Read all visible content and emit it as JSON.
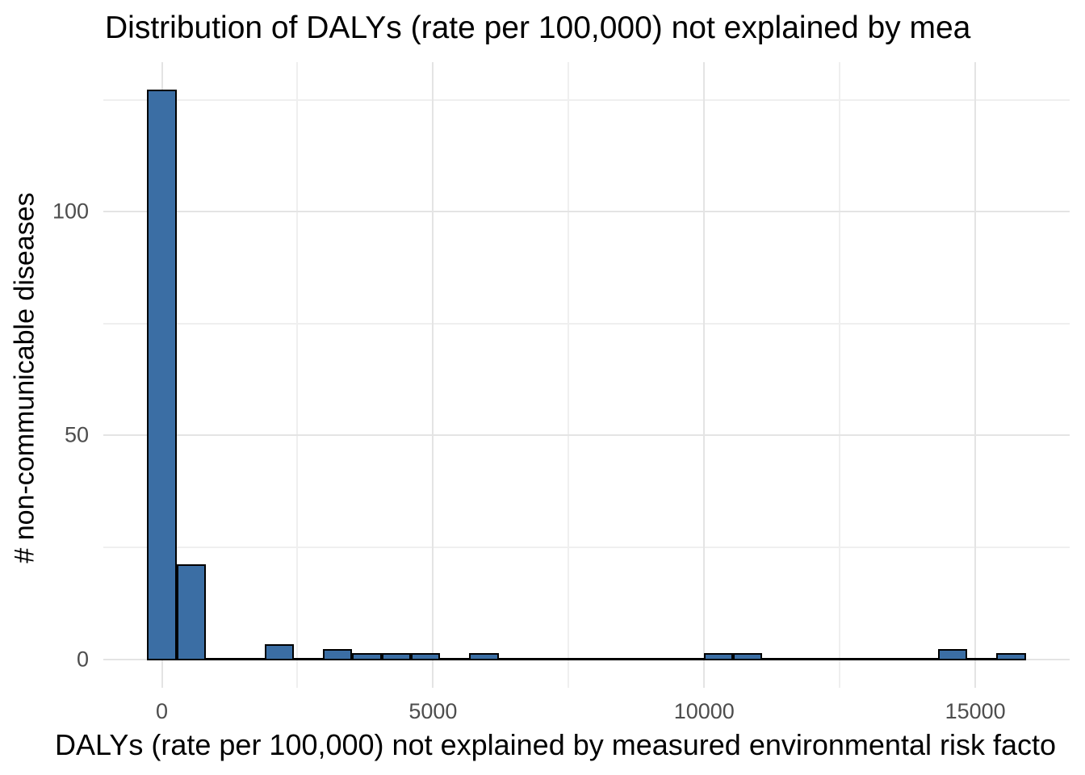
{
  "chart_data": {
    "type": "histogram",
    "title": "Distribution of DALYs (rate per 100,000) not explained by mea",
    "xlabel": "DALYs (rate per 100,000) not explained by measured environmental risk facto",
    "ylabel": "# non-communicable diseases",
    "bin_width": 540,
    "bin_centers": [
      0,
      540,
      1080,
      1620,
      2160,
      2700,
      3240,
      3780,
      4320,
      4860,
      5400,
      5940,
      6480,
      7020,
      7560,
      8100,
      8640,
      9180,
      9720,
      10260,
      10800,
      11340,
      11880,
      12420,
      12960,
      13500,
      14040,
      14580,
      15120,
      15660
    ],
    "counts": [
      127,
      21,
      0,
      0,
      3,
      0,
      2,
      1,
      1,
      1,
      0,
      1,
      0,
      0,
      0,
      0,
      0,
      0,
      0,
      1,
      1,
      0,
      0,
      0,
      0,
      0,
      0,
      2,
      0,
      1
    ],
    "x_major_ticks": [
      0,
      5000,
      10000,
      15000
    ],
    "x_minor_ticks": [
      2500,
      7500,
      12500
    ],
    "y_major_ticks": [
      0,
      50,
      100
    ],
    "y_minor_ticks": [
      25,
      75,
      125
    ],
    "xlim": [
      -1080,
      16740
    ],
    "ylim": [
      -6.4,
      133.4
    ],
    "grid": "major and minor gridlines, no axis lines, no tick marks",
    "legend_position": "none",
    "colors": {
      "bar_fill": "#3b6ea4",
      "bar_stroke": "#000000",
      "grid_major": "#e4e4e4",
      "grid_minor": "#efefef",
      "tick_label": "#4d4d4d",
      "text": "#000000",
      "background": "#ffffff"
    }
  }
}
